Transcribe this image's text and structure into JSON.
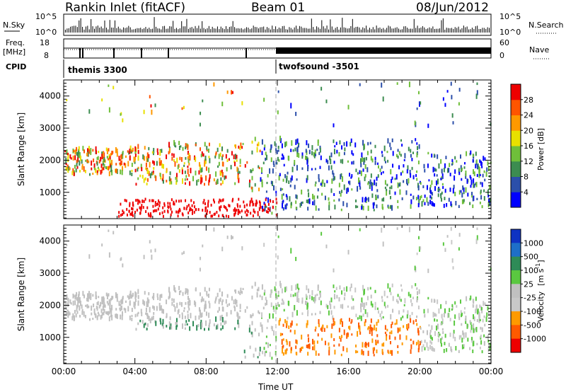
{
  "header": {
    "radar": "Rankin Inlet (fitACF)",
    "beam": "Beam 01",
    "date": "08/Jun/2012"
  },
  "top_strip": {
    "left_label": "N.Sky",
    "left_tick_high": "10^5",
    "left_tick_low": "10^0",
    "right_label": "N.Search",
    "right_tick_high": "10^5",
    "right_tick_low": "10^0"
  },
  "freq_strip": {
    "left_label_1": "Freq.",
    "left_label_2": "[MHz]",
    "left_tick_high": "18",
    "left_tick_low": "8",
    "right_label": "Nave",
    "right_tick_high": "60",
    "right_tick_low": "0"
  },
  "cpid": {
    "label": "CPID",
    "modes": [
      "themis 3300",
      "twofsound -3501"
    ]
  },
  "chart_data": [
    {
      "type": "heatmap",
      "title": "Power",
      "xlabel": "",
      "ylabel": "Slant Range [km]",
      "x_ticks": [
        "00:00",
        "04:00",
        "08:00",
        "12:00",
        "16:00",
        "20:00",
        "00:00"
      ],
      "y_ticks": [
        "1000",
        "2000",
        "3000",
        "4000"
      ],
      "ylim": [
        180,
        4500
      ],
      "xlim_hours": [
        0,
        24
      ],
      "colorbar": {
        "label": "Power [dB]",
        "ticks": [
          "4",
          "8",
          "12",
          "16",
          "20",
          "24",
          "28"
        ],
        "colors": [
          "#0000ff",
          "#2b4faa",
          "#3c8c50",
          "#6fbf3a",
          "#e8e000",
          "#ff9900",
          "#ff5500",
          "#ee0000"
        ]
      }
    },
    {
      "type": "heatmap",
      "title": "Velocity",
      "xlabel": "Time UT",
      "ylabel": "Slant Range [km]",
      "x_ticks": [
        "00:00",
        "04:00",
        "08:00",
        "12:00",
        "16:00",
        "20:00",
        "00:00"
      ],
      "y_ticks": [
        "1000",
        "2000",
        "3000",
        "4000"
      ],
      "ylim": [
        180,
        4500
      ],
      "xlim_hours": [
        0,
        24
      ],
      "colorbar": {
        "label_1": "Velocity",
        "label_2": "[m s",
        "label_sup": "-1",
        "label_3": "]",
        "ticks": [
          "1000",
          "500",
          "100",
          "25",
          "-25",
          "-100",
          "-500",
          "-1000"
        ],
        "colors": [
          "#0f33c2",
          "#1e6fc8",
          "#2e8b57",
          "#5ac840",
          "#c0c0c0",
          "#c8c8c8",
          "#ff9a00",
          "#ff5a00",
          "#ee0000"
        ]
      }
    }
  ]
}
